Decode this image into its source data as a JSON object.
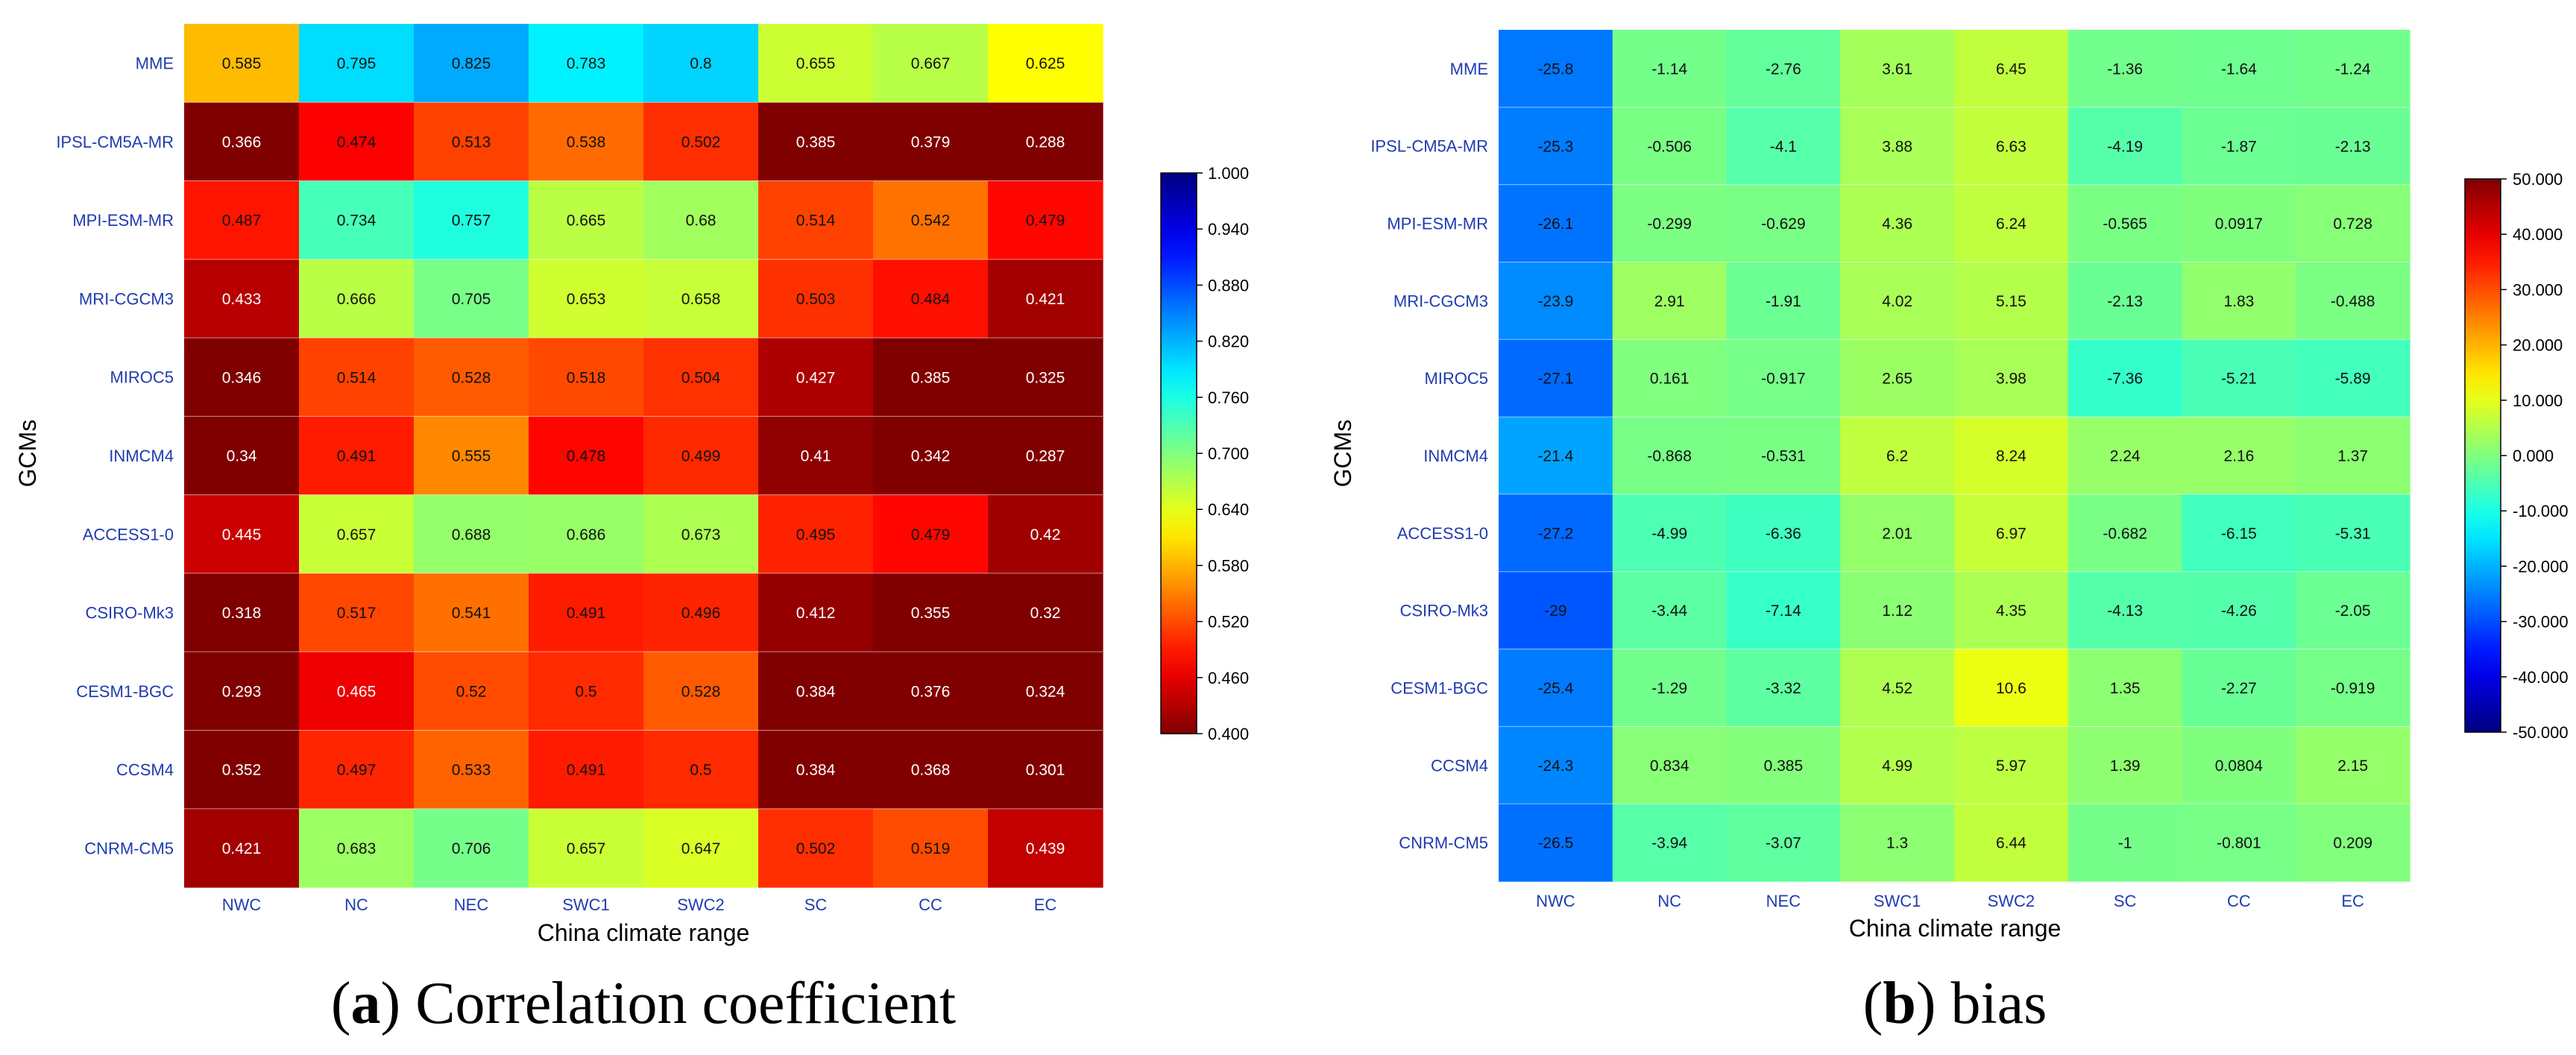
{
  "chart_data": [
    {
      "type": "heatmap",
      "panel": "a",
      "caption_letter": "a",
      "caption_text": "Correlation coefficient",
      "xlabel": "China climate range",
      "ylabel": "GCMs",
      "x": [
        "NWC",
        "NC",
        "NEC",
        "SWC1",
        "SWC2",
        "SC",
        "CC",
        "EC"
      ],
      "y": [
        "MME",
        "IPSL-CM5A-MR",
        "MPI-ESM-MR",
        "MRI-CGCM3",
        "MIROC5",
        "INMCM4",
        "ACCESS1-0",
        "CSIRO-Mk3",
        "CESM1-BGC",
        "CCSM4",
        "CNRM-CM5"
      ],
      "values": [
        [
          0.585,
          0.795,
          0.825,
          0.783,
          0.8,
          0.655,
          0.667,
          0.625
        ],
        [
          0.366,
          0.474,
          0.513,
          0.538,
          0.502,
          0.385,
          0.379,
          0.288
        ],
        [
          0.487,
          0.734,
          0.757,
          0.665,
          0.68,
          0.514,
          0.542,
          0.479
        ],
        [
          0.433,
          0.666,
          0.705,
          0.653,
          0.658,
          0.503,
          0.484,
          0.421
        ],
        [
          0.346,
          0.514,
          0.528,
          0.518,
          0.504,
          0.427,
          0.385,
          0.325
        ],
        [
          0.34,
          0.491,
          0.555,
          0.478,
          0.499,
          0.41,
          0.342,
          0.287
        ],
        [
          0.445,
          0.657,
          0.688,
          0.686,
          0.673,
          0.495,
          0.479,
          0.42
        ],
        [
          0.318,
          0.517,
          0.541,
          0.491,
          0.496,
          0.412,
          0.355,
          0.32
        ],
        [
          0.293,
          0.465,
          0.52,
          0.5,
          0.528,
          0.384,
          0.376,
          0.324
        ],
        [
          0.352,
          0.497,
          0.533,
          0.491,
          0.5,
          0.384,
          0.368,
          0.301
        ],
        [
          0.421,
          0.683,
          0.706,
          0.657,
          0.647,
          0.502,
          0.519,
          0.439
        ]
      ],
      "value_labels": [
        [
          "0.585",
          "0.795",
          "0.825",
          "0.783",
          "0.8",
          "0.655",
          "0.667",
          "0.625"
        ],
        [
          "0.366",
          "0.474",
          "0.513",
          "0.538",
          "0.502",
          "0.385",
          "0.379",
          "0.288"
        ],
        [
          "0.487",
          "0.734",
          "0.757",
          "0.665",
          "0.68",
          "0.514",
          "0.542",
          "0.479"
        ],
        [
          "0.433",
          "0.666",
          "0.705",
          "0.653",
          "0.658",
          "0.503",
          "0.484",
          "0.421"
        ],
        [
          "0.346",
          "0.514",
          "0.528",
          "0.518",
          "0.504",
          "0.427",
          "0.385",
          "0.325"
        ],
        [
          "0.34",
          "0.491",
          "0.555",
          "0.478",
          "0.499",
          "0.41",
          "0.342",
          "0.287"
        ],
        [
          "0.445",
          "0.657",
          "0.688",
          "0.686",
          "0.673",
          "0.495",
          "0.479",
          "0.42"
        ],
        [
          "0.318",
          "0.517",
          "0.541",
          "0.491",
          "0.496",
          "0.412",
          "0.355",
          "0.32"
        ],
        [
          "0.293",
          "0.465",
          "0.52",
          "0.5",
          "0.528",
          "0.384",
          "0.376",
          "0.324"
        ],
        [
          "0.352",
          "0.497",
          "0.533",
          "0.491",
          "0.5",
          "0.384",
          "0.368",
          "0.301"
        ],
        [
          "0.421",
          "0.683",
          "0.706",
          "0.657",
          "0.647",
          "0.502",
          "0.519",
          "0.439"
        ]
      ],
      "colorbar": {
        "min": 0.4,
        "max": 1.0,
        "ticks": [
          "1.000",
          "0.940",
          "0.880",
          "0.820",
          "0.760",
          "0.700",
          "0.640",
          "0.580",
          "0.520",
          "0.460",
          "0.400"
        ]
      },
      "colormap": "jet_reversed"
    },
    {
      "type": "heatmap",
      "panel": "b",
      "caption_letter": "b",
      "caption_text": "bias",
      "xlabel": "China climate range",
      "ylabel": "GCMs",
      "x": [
        "NWC",
        "NC",
        "NEC",
        "SWC1",
        "SWC2",
        "SC",
        "CC",
        "EC"
      ],
      "y": [
        "MME",
        "IPSL-CM5A-MR",
        "MPI-ESM-MR",
        "MRI-CGCM3",
        "MIROC5",
        "INMCM4",
        "ACCESS1-0",
        "CSIRO-Mk3",
        "CESM1-BGC",
        "CCSM4",
        "CNRM-CM5"
      ],
      "values": [
        [
          -25.8,
          -1.14,
          -2.76,
          3.61,
          6.45,
          -1.36,
          -1.64,
          -1.24
        ],
        [
          -25.3,
          -0.506,
          -4.1,
          3.88,
          6.63,
          -4.19,
          -1.87,
          -2.13
        ],
        [
          -26.1,
          -0.299,
          -0.629,
          4.36,
          6.24,
          -0.565,
          0.0917,
          0.728
        ],
        [
          -23.9,
          2.91,
          -1.91,
          4.02,
          5.15,
          -2.13,
          1.83,
          -0.488
        ],
        [
          -27.1,
          0.161,
          -0.917,
          2.65,
          3.98,
          -7.36,
          -5.21,
          -5.89
        ],
        [
          -21.4,
          -0.868,
          -0.531,
          6.2,
          8.24,
          2.24,
          2.16,
          1.37
        ],
        [
          -27.2,
          -4.99,
          -6.36,
          2.01,
          6.97,
          -0.682,
          -6.15,
          -5.31
        ],
        [
          -29,
          -3.44,
          -7.14,
          1.12,
          4.35,
          -4.13,
          -4.26,
          -2.05
        ],
        [
          -25.4,
          -1.29,
          -3.32,
          4.52,
          10.6,
          1.35,
          -2.27,
          -0.919
        ],
        [
          -24.3,
          0.834,
          0.385,
          4.99,
          5.97,
          1.39,
          0.0804,
          2.15
        ],
        [
          -26.5,
          -3.94,
          -3.07,
          1.3,
          6.44,
          -1,
          -0.801,
          0.209
        ]
      ],
      "value_labels": [
        [
          "-25.8",
          "-1.14",
          "-2.76",
          "3.61",
          "6.45",
          "-1.36",
          "-1.64",
          "-1.24"
        ],
        [
          "-25.3",
          "-0.506",
          "-4.1",
          "3.88",
          "6.63",
          "-4.19",
          "-1.87",
          "-2.13"
        ],
        [
          "-26.1",
          "-0.299",
          "-0.629",
          "4.36",
          "6.24",
          "-0.565",
          "0.0917",
          "0.728"
        ],
        [
          "-23.9",
          "2.91",
          "-1.91",
          "4.02",
          "5.15",
          "-2.13",
          "1.83",
          "-0.488"
        ],
        [
          "-27.1",
          "0.161",
          "-0.917",
          "2.65",
          "3.98",
          "-7.36",
          "-5.21",
          "-5.89"
        ],
        [
          "-21.4",
          "-0.868",
          "-0.531",
          "6.2",
          "8.24",
          "2.24",
          "2.16",
          "1.37"
        ],
        [
          "-27.2",
          "-4.99",
          "-6.36",
          "2.01",
          "6.97",
          "-0.682",
          "-6.15",
          "-5.31"
        ],
        [
          "-29",
          "-3.44",
          "-7.14",
          "1.12",
          "4.35",
          "-4.13",
          "-4.26",
          "-2.05"
        ],
        [
          "-25.4",
          "-1.29",
          "-3.32",
          "4.52",
          "10.6",
          "1.35",
          "-2.27",
          "-0.919"
        ],
        [
          "-24.3",
          "0.834",
          "0.385",
          "4.99",
          "5.97",
          "1.39",
          "0.0804",
          "2.15"
        ],
        [
          "-26.5",
          "-3.94",
          "-3.07",
          "1.3",
          "6.44",
          "-1",
          "-0.801",
          "0.209"
        ]
      ],
      "colorbar": {
        "min": -50,
        "max": 50,
        "ticks": [
          "50.000",
          "40.000",
          "30.000",
          "20.000",
          "10.000",
          "0.000",
          "-10.000",
          "-20.000",
          "-30.000",
          "-40.000",
          "-50.000"
        ]
      },
      "colormap": "jet"
    }
  ],
  "colors": {
    "tick_label": "#1f3bb0",
    "axis_label": "#000000",
    "caption": "#000000",
    "grid_line": "#ffffff"
  }
}
